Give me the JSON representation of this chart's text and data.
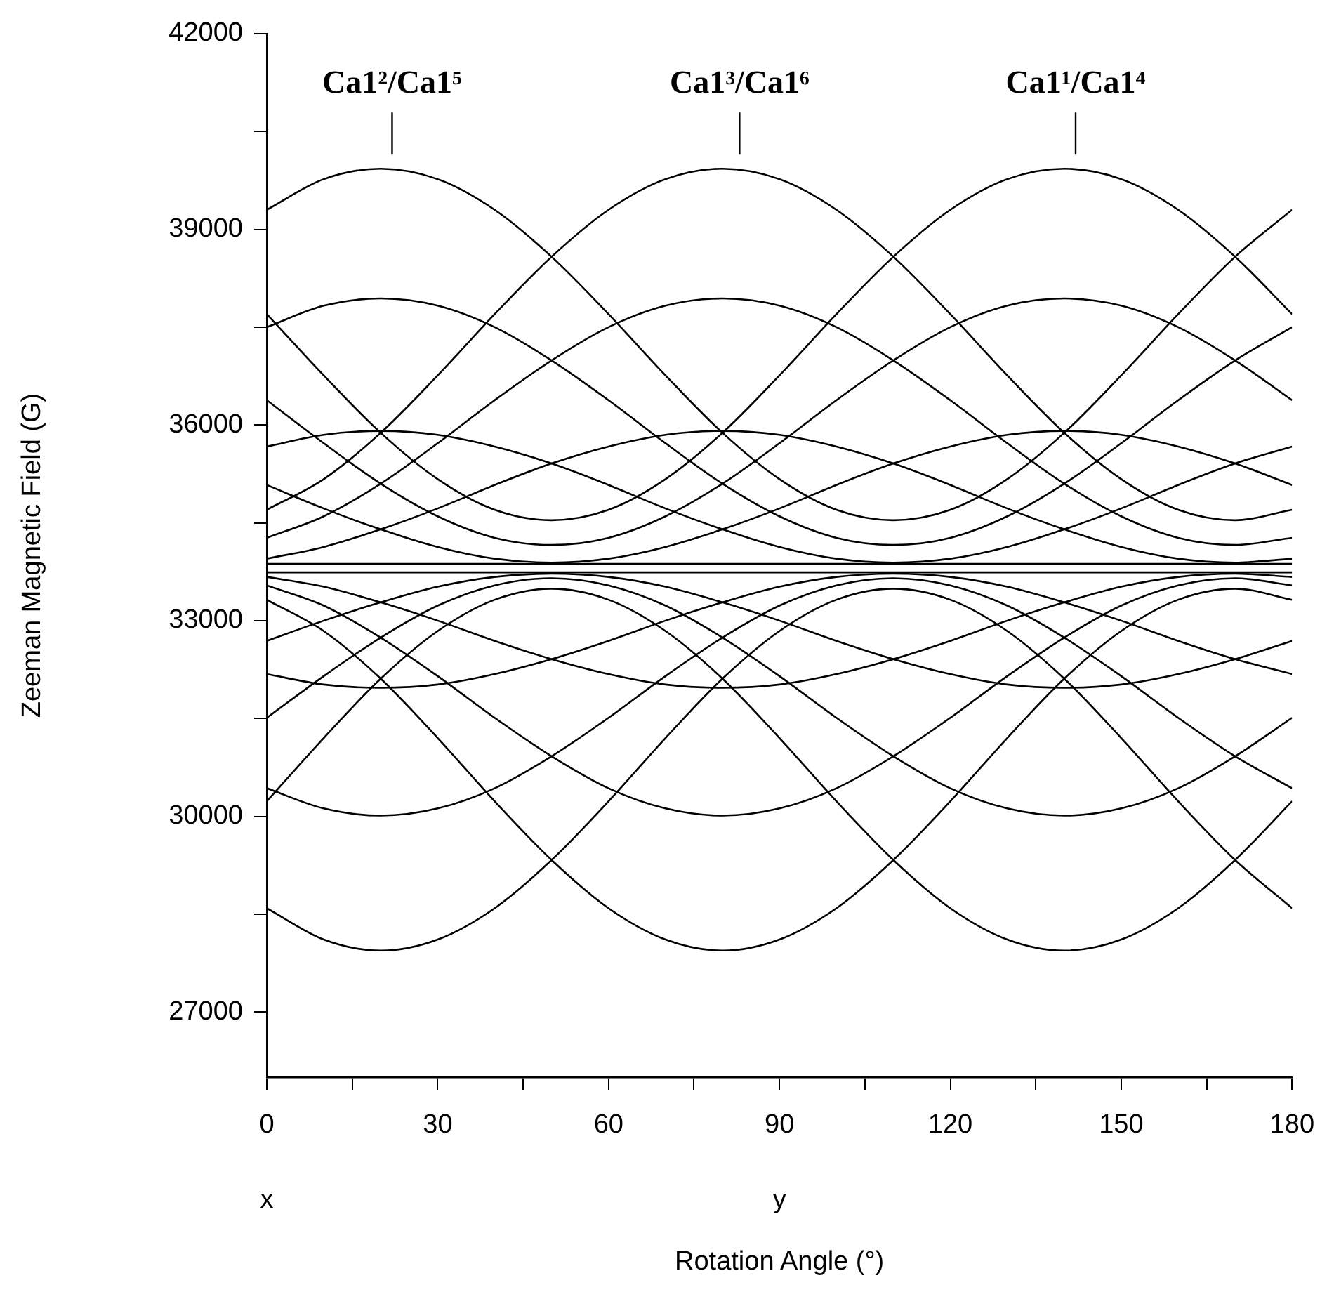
{
  "chart_data": {
    "type": "line",
    "xlabel": "Rotation Angle (°)",
    "ylabel": "Zeeman Magnetic Field (G)",
    "x": [
      0,
      10,
      20,
      30,
      40,
      50,
      60,
      70,
      80,
      90,
      100,
      110,
      120,
      130,
      140,
      150,
      160,
      170,
      180
    ],
    "xlim": [
      0,
      180
    ],
    "ylim": [
      26000,
      42000
    ],
    "xticks": [
      0,
      {
        "value": 15,
        "label": null
      },
      30,
      {
        "value": 45,
        "label": null
      },
      60,
      {
        "value": 75,
        "label": null
      },
      90,
      {
        "value": 105,
        "label": null
      },
      120,
      {
        "value": 135,
        "label": null
      },
      150,
      {
        "value": 165,
        "label": null
      },
      180
    ],
    "yticks": [
      27000,
      {
        "value": 28500,
        "label": null
      },
      30000,
      {
        "value": 31500,
        "label": null
      },
      33000,
      {
        "value": 34500,
        "label": null
      },
      36000,
      {
        "value": 37500,
        "label": null
      },
      39000,
      {
        "value": 40500,
        "label": null
      },
      42000
    ],
    "marker": "none",
    "line_style": "solid",
    "annotations": [
      {
        "text": "Ca1²/Ca1⁵",
        "x": 22,
        "y": 39930
      },
      {
        "text": "Ca1³/Ca1⁶",
        "x": 83,
        "y": 39930
      },
      {
        "text": "Ca1¹/Ca1⁴",
        "x": 142,
        "y": 39930
      },
      "x",
      "y"
    ],
    "series": [
      {
        "color": "#000000",
        "values": [
          39300,
          39770,
          39930,
          39770,
          39300,
          38580,
          37700,
          36760,
          35880,
          35170,
          34700,
          34540,
          34700,
          35170,
          35880,
          36760,
          37700,
          38580,
          39300
        ]
      },
      {
        "color": "#000000",
        "values": [
          34700,
          35170,
          35880,
          36760,
          37700,
          38580,
          39300,
          39770,
          39930,
          39770,
          39300,
          38580,
          37700,
          36760,
          35880,
          35170,
          34700,
          34540,
          34700
        ]
      },
      {
        "color": "#000000",
        "values": [
          37700,
          36760,
          35880,
          35170,
          34700,
          34540,
          34700,
          35170,
          35880,
          36760,
          37700,
          38580,
          39300,
          39770,
          39930,
          39770,
          39300,
          38580,
          37700
        ]
      },
      {
        "color": "#000000",
        "values": [
          37500,
          37830,
          37940,
          37830,
          37500,
          36990,
          36380,
          35720,
          35100,
          34600,
          34270,
          34160,
          34270,
          34600,
          35100,
          35720,
          36380,
          36990,
          37500
        ]
      },
      {
        "color": "#000000",
        "values": [
          34270,
          34600,
          35100,
          35720,
          36380,
          36990,
          37500,
          37830,
          37940,
          37830,
          37500,
          36990,
          36380,
          35720,
          35100,
          34600,
          34270,
          34160,
          34270
        ]
      },
      {
        "color": "#000000",
        "values": [
          36380,
          35720,
          35100,
          34600,
          34270,
          34160,
          34270,
          34600,
          35100,
          35720,
          36380,
          36990,
          37500,
          37830,
          37940,
          37830,
          37500,
          36990,
          36380
        ]
      },
      {
        "color": "#000000",
        "values": [
          35670,
          35850,
          35910,
          35850,
          35670,
          35410,
          35080,
          34720,
          34400,
          34130,
          33950,
          33890,
          33950,
          34130,
          34400,
          34720,
          35080,
          35410,
          35670
        ]
      },
      {
        "color": "#000000",
        "values": [
          33950,
          34130,
          34400,
          34720,
          35080,
          35410,
          35670,
          35850,
          35910,
          35850,
          35670,
          35410,
          35080,
          34720,
          34400,
          34130,
          33950,
          33890,
          33950
        ]
      },
      {
        "color": "#000000",
        "values": [
          35080,
          34720,
          34400,
          34130,
          33950,
          33890,
          33950,
          34130,
          34400,
          34720,
          35080,
          35410,
          35670,
          35850,
          35910,
          35850,
          35670,
          35410,
          35080
        ]
      },
      {
        "color": "#000000",
        "values": [
          33870,
          33870,
          33870,
          33870,
          33870,
          33870,
          33870,
          33870,
          33870,
          33870,
          33870,
          33870,
          33870,
          33870,
          33870,
          33870,
          33870,
          33870,
          33870
        ]
      },
      {
        "color": "#000000",
        "values": [
          33740,
          33740,
          33740,
          33740,
          33740,
          33740,
          33740,
          33740,
          33740,
          33740,
          33740,
          33740,
          33740,
          33740,
          33740,
          33740,
          33740,
          33740,
          33740
        ]
      },
      {
        "color": "#000000",
        "values": [
          32180,
          32020,
          31970,
          32020,
          32180,
          32410,
          32690,
          33000,
          33280,
          33520,
          33670,
          33720,
          33670,
          33520,
          33280,
          33000,
          32690,
          32410,
          32180
        ]
      },
      {
        "color": "#000000",
        "values": [
          33670,
          33520,
          33280,
          33000,
          32690,
          32410,
          32180,
          32020,
          31970,
          32020,
          32180,
          32410,
          32690,
          33000,
          33280,
          33520,
          33670,
          33720,
          33670
        ]
      },
      {
        "color": "#000000",
        "values": [
          32690,
          33000,
          33280,
          33520,
          33670,
          33720,
          33670,
          33520,
          33280,
          33000,
          32690,
          32410,
          32180,
          32020,
          31970,
          32020,
          32180,
          32410,
          32690
        ]
      },
      {
        "color": "#000000",
        "values": [
          30430,
          30120,
          30010,
          30120,
          30430,
          30920,
          31510,
          32150,
          32740,
          33230,
          33540,
          33650,
          33540,
          33230,
          32740,
          32150,
          31510,
          30920,
          30430
        ]
      },
      {
        "color": "#000000",
        "values": [
          33540,
          33230,
          32740,
          32150,
          31510,
          30920,
          30430,
          30120,
          30010,
          30120,
          30430,
          30920,
          31510,
          32150,
          32740,
          33230,
          33540,
          33650,
          33540
        ]
      },
      {
        "color": "#000000",
        "values": [
          31510,
          32150,
          32740,
          33230,
          33540,
          33650,
          33540,
          33230,
          32740,
          32150,
          31510,
          30920,
          30430,
          30120,
          30010,
          30120,
          30430,
          30920,
          31510
        ]
      },
      {
        "color": "#000000",
        "values": [
          28590,
          28110,
          27940,
          28110,
          28590,
          29330,
          30230,
          31200,
          32110,
          32840,
          33320,
          33490,
          33320,
          32840,
          32110,
          31200,
          30230,
          29330,
          28590
        ]
      },
      {
        "color": "#000000",
        "values": [
          33320,
          32840,
          32110,
          31200,
          30230,
          29330,
          28590,
          28110,
          27940,
          28110,
          28590,
          29330,
          30230,
          31200,
          32110,
          32840,
          33320,
          33490,
          33320
        ]
      },
      {
        "color": "#000000",
        "values": [
          30230,
          31200,
          32110,
          32840,
          33320,
          33490,
          33320,
          32840,
          32110,
          31200,
          30230,
          29330,
          28590,
          28110,
          27940,
          28110,
          28590,
          29330,
          30230
        ]
      }
    ]
  }
}
